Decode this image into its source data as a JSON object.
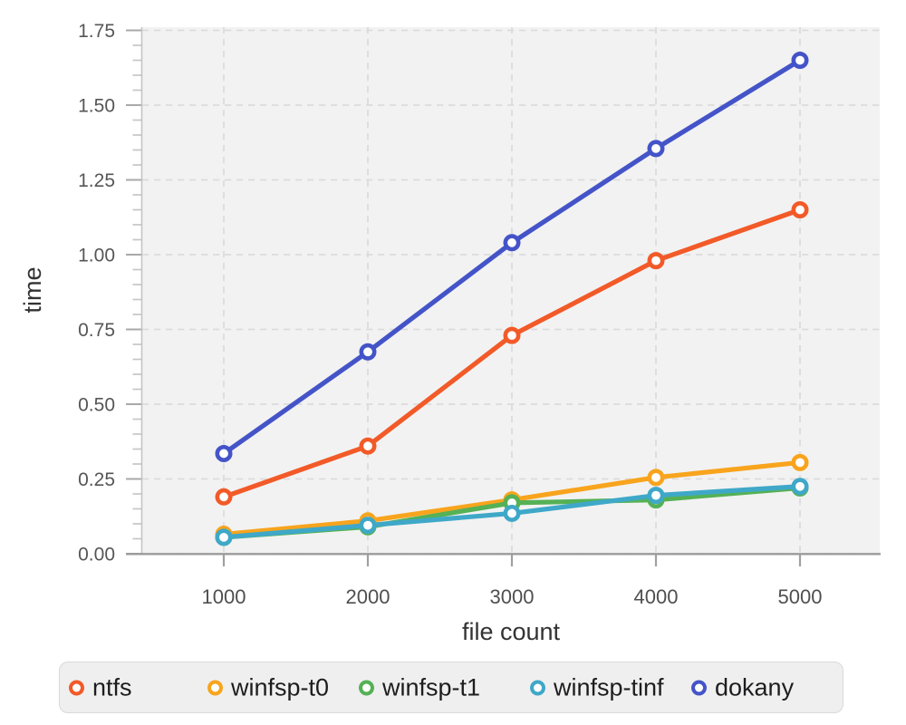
{
  "chart_data": {
    "type": "line",
    "title": "",
    "xlabel": "file count",
    "ylabel": "time",
    "x": [
      1000,
      2000,
      3000,
      4000,
      5000
    ],
    "x_tick_labels": [
      "1000",
      "2000",
      "3000",
      "4000",
      "5000"
    ],
    "ylim": [
      0,
      1.75
    ],
    "y_tick_step": 0.25,
    "y_minor_tick_step": 0.05,
    "y_tick_labels": [
      "0.00",
      "0.25",
      "0.50",
      "0.75",
      "1.00",
      "1.25",
      "1.50",
      "1.75"
    ],
    "grid": "dashed-major-gridlines",
    "marker_style": "open-circle",
    "legend_position": "bottom",
    "series": [
      {
        "name": "ntfs",
        "color": "#F25A28",
        "values": [
          0.19,
          0.36,
          0.73,
          0.98,
          1.15
        ]
      },
      {
        "name": "winfsp-t0",
        "color": "#F8A41D",
        "values": [
          0.065,
          0.11,
          0.18,
          0.255,
          0.305
        ]
      },
      {
        "name": "winfsp-t1",
        "color": "#55B155",
        "values": [
          0.055,
          0.09,
          0.17,
          0.18,
          0.22
        ]
      },
      {
        "name": "winfsp-tinf",
        "color": "#3FA8C8",
        "values": [
          0.055,
          0.095,
          0.135,
          0.195,
          0.225
        ]
      },
      {
        "name": "dokany",
        "color": "#4454C8",
        "values": [
          0.335,
          0.675,
          1.04,
          1.355,
          1.65
        ]
      }
    ],
    "panel_background": "#f2f2f2",
    "gridline_color": "#dbdbdb",
    "axis_line_color": "#9b9b9b"
  }
}
